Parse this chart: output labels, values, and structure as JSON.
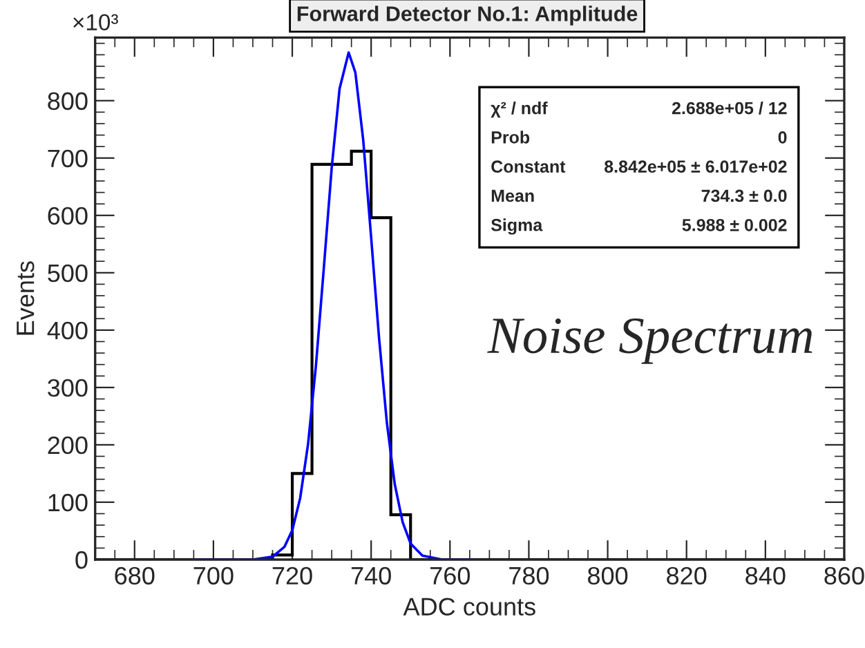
{
  "chart_data": {
    "type": "histogram",
    "title": "Forward Detector No.1: Amplitude",
    "xlabel": "ADC counts",
    "ylabel": "Events",
    "bins": [
      670,
      675,
      680,
      685,
      690,
      695,
      700,
      705,
      710,
      715,
      720,
      725,
      730,
      735,
      740,
      745,
      750,
      755,
      760,
      765,
      770,
      775,
      780,
      785,
      790,
      795,
      800,
      805,
      810,
      815,
      820,
      825,
      830,
      835,
      840,
      845,
      850,
      855,
      860
    ],
    "series": [
      {
        "color": "#000000",
        "values": [
          0,
          0,
          0,
          0,
          0,
          0,
          0,
          0,
          0,
          8,
          150,
          689,
          689,
          712,
          596,
          78,
          0,
          0,
          0,
          0,
          0,
          0,
          0,
          0,
          0,
          0,
          0,
          0,
          0,
          0,
          0,
          0,
          0,
          0,
          0,
          0,
          0,
          0
        ]
      },
      {
        "type": "line",
        "color": "#0000ff",
        "x": [
          695,
          700,
          710,
          715,
          718,
          720,
          722,
          724,
          726,
          728,
          730,
          732,
          734.3,
          736,
          738,
          740,
          742,
          744,
          746,
          748,
          750,
          753,
          758,
          767
        ],
        "values": [
          0,
          0,
          0,
          5,
          22,
          51,
          107,
          201,
          338,
          508,
          683,
          821,
          884,
          849,
          731,
          562,
          387,
          238,
          131,
          65,
          28,
          7,
          0,
          0
        ]
      }
    ],
    "xlim": [
      670,
      860
    ],
    "xticks": [
      680,
      700,
      720,
      740,
      760,
      780,
      800,
      820,
      840,
      860
    ],
    "ylim": [
      0,
      910
    ],
    "yticks": [
      0,
      100,
      200,
      300,
      400,
      500,
      600,
      700,
      800
    ],
    "grid": false,
    "legend": false,
    "annotations": [
      "×10³",
      "Noise Spectrum",
      "χ² / ndf",
      "2.688e+05 / 12",
      "Prob",
      "0",
      "Constant",
      "8.842e+05 ± 6.017e+02",
      "Mean",
      "734.3 ± 0.0",
      "Sigma",
      "5.988 ± 0.002"
    ]
  }
}
